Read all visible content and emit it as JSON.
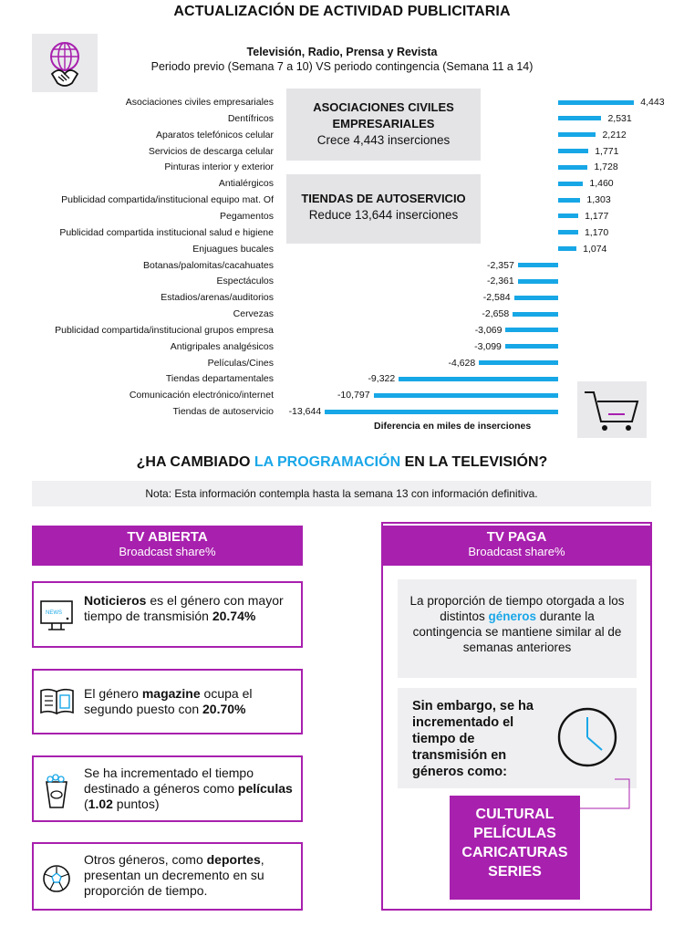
{
  "header": {
    "title": "ACTUALIZACIÓN DE ACTIVIDAD PUBLICITARIA",
    "subtitle_bold": "Televisión, Radio, Prensa y Revista",
    "subtitle": "Periodo previo (Semana 7 a 10) VS periodo contingencia (Semana 11 a 14)"
  },
  "chart_data": {
    "type": "bar",
    "orientation": "horizontal",
    "categories": [
      "Asociaciones civiles empresariales",
      "Dentífricos",
      "Aparatos telefónicos celular",
      "Servicios de descarga celular",
      "Pinturas interior y exterior",
      "Antialérgicos",
      "Publicidad compartida/institucional equipo mat. Of",
      "Pegamentos",
      "Publicidad compartida institucional salud e higiene",
      "Enjuagues bucales",
      "Botanas/palomitas/cacahuates",
      "Espectáculos",
      "Estadios/arenas/auditorios",
      "Cervezas",
      "Publicidad compartida/institucional grupos empresa",
      "Antigripales analgésicos",
      "Películas/Cines",
      "Tiendas departamentales",
      "Comunicación electrónico/internet",
      "Tiendas de autoservicio"
    ],
    "values": [
      4443,
      2531,
      2212,
      1771,
      1728,
      1460,
      1303,
      1177,
      1170,
      1074,
      -2357,
      -2361,
      -2584,
      -2658,
      -3069,
      -3099,
      -4628,
      -9322,
      -10797,
      -13644
    ],
    "value_labels": [
      "4,443",
      "2,531",
      "2,212",
      "1,771",
      "1,728",
      "1,460",
      "1,303",
      "1,177",
      "1,170",
      "1,074",
      "-2,357",
      "-2,361",
      "-2,584",
      "-2,658",
      "-3,069",
      "-3,099",
      "-4,628",
      "-9,322",
      "-10,797",
      "-13,644"
    ],
    "xlabel": "Diferencia en miles de inserciones",
    "ylabel": "",
    "bar_color": "#17a7e6"
  },
  "callouts": {
    "c1_title": "ASOCIACIONES CIVILES EMPRESARIALES",
    "c1_text": "Crece 4,443 inserciones",
    "c2_title": "TIENDAS DE AUTOSERVICIO",
    "c2_text": "Reduce 13,644 inserciones"
  },
  "section2": {
    "title_pre": "¿HA CAMBIADO ",
    "title_hl": "LA PROGRAMACIÓN",
    "title_post": " EN LA TELEVISIÓN?",
    "note": "Nota: Esta información contempla hasta la semana 13 con información definitiva."
  },
  "tv_abierta": {
    "title": "TV ABIERTA",
    "subtitle": "Broadcast share%",
    "news_label": "NEWS",
    "card1": {
      "b1": "Noticieros",
      "t1": " es el género con mayor tiempo de transmisión ",
      "b2": "20.74%"
    },
    "card2": {
      "t1": "El género ",
      "b1": "magazine",
      "t2": " ocupa el segundo puesto con ",
      "b2": "20.70%"
    },
    "card3": {
      "t1": "Se ha incrementado el tiempo destinado a géneros como ",
      "b1": "películas",
      "t2": " (",
      "b2": "1.02",
      "t3": " puntos)"
    },
    "card4": {
      "t1": "Otros géneros, como ",
      "b1": "deportes",
      "t2": ", presentan un decremento en su proporción de tiempo."
    }
  },
  "tv_paga": {
    "title": "TV PAGA",
    "subtitle": "Broadcast share%",
    "p1_a": "La proporción de tiempo otorgada a los distintos ",
    "p1_hl": "géneros",
    "p1_b": " durante la contingencia se mantiene similar al de semanas anteriores",
    "p2": "Sin embargo, se ha incrementado el tiempo de transmisión en géneros como:",
    "genres": [
      "CULTURAL",
      "PELÍCULAS",
      "CARICATURAS",
      "SERIES"
    ]
  },
  "colors": {
    "accent": "#a820ae",
    "blue": "#17a7e6",
    "gray_box": "#e4e4e7"
  }
}
